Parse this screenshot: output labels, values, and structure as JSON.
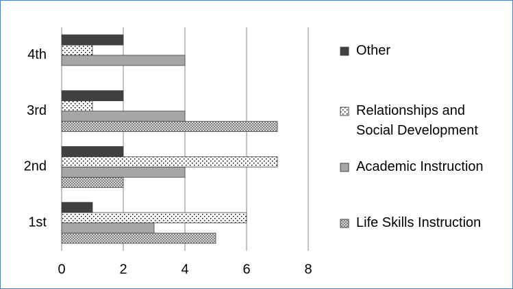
{
  "chart_data": {
    "type": "hbar",
    "categories": [
      "1st",
      "2nd",
      "3rd",
      "4th"
    ],
    "series": [
      {
        "name": "Life Skills Instruction",
        "color": "#bfbfbf",
        "values": [
          5,
          2,
          7,
          0
        ]
      },
      {
        "name": "Academic Instruction",
        "color": "#a6a6a6",
        "values": [
          3,
          4,
          4,
          4
        ]
      },
      {
        "name": "Relationships and Social Development",
        "color": "#ffffff",
        "values": [
          6,
          7,
          1,
          1
        ]
      },
      {
        "name": "Other",
        "color": "#404040",
        "values": [
          1,
          2,
          2,
          2
        ]
      }
    ],
    "xlim": [
      0,
      8
    ],
    "xticks": [
      0,
      2,
      4,
      6,
      8
    ],
    "grid": true
  }
}
